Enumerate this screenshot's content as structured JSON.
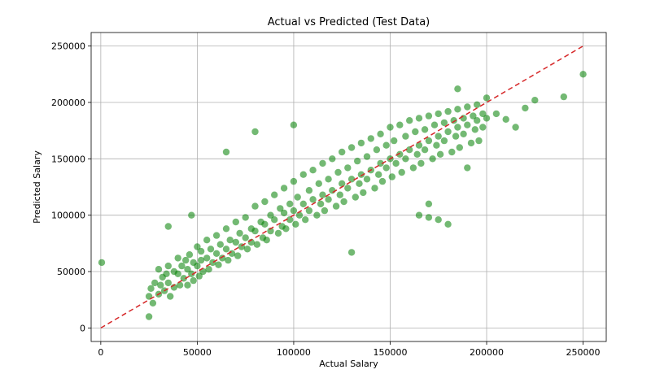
{
  "chart_data": {
    "type": "scatter",
    "title": "Actual vs Predicted (Test Data)",
    "xlabel": "Actual Salary",
    "ylabel": "Predicted Salary",
    "xlim": [
      -5000,
      262000
    ],
    "ylim": [
      -12000,
      262000
    ],
    "xticks": [
      0,
      50000,
      100000,
      150000,
      200000,
      250000
    ],
    "yticks": [
      0,
      50000,
      100000,
      150000,
      200000,
      250000
    ],
    "xtick_labels": [
      "0",
      "50000",
      "100000",
      "150000",
      "200000",
      "250000"
    ],
    "ytick_labels": [
      "0",
      "50000",
      "100000",
      "150000",
      "200000",
      "250000"
    ],
    "grid": true,
    "point_color": "#008000",
    "reference_line": {
      "style": "dashed",
      "color": "#d62728",
      "x": [
        0,
        250000
      ],
      "y": [
        0,
        250000
      ]
    },
    "series": [
      {
        "x": [
          500,
          25000,
          25000,
          26000,
          27000,
          28000,
          30000,
          30000,
          31000,
          32000,
          33000,
          34000,
          35000,
          35000,
          36000,
          38000,
          38000,
          40000,
          40000,
          41000,
          42000,
          43000,
          44000,
          45000,
          45000,
          46000,
          47000,
          48000,
          48000,
          50000,
          50000,
          51000,
          52000,
          52000,
          53000,
          55000,
          55000,
          56000,
          57000,
          58000,
          60000,
          60000,
          61000,
          62000,
          63000,
          65000,
          65000,
          66000,
          67000,
          68000,
          70000,
          70000,
          71000,
          72000,
          73000,
          75000,
          75000,
          76000,
          78000,
          78000,
          80000,
          80000,
          81000,
          83000,
          84000,
          85000,
          85000,
          86000,
          88000,
          88000,
          90000,
          90000,
          92000,
          93000,
          94000,
          95000,
          95000,
          96000,
          98000,
          98000,
          100000,
          100000,
          101000,
          102000,
          103000,
          105000,
          105000,
          106000,
          108000,
          108000,
          110000,
          110000,
          112000,
          113000,
          114000,
          115000,
          115000,
          116000,
          118000,
          118000,
          120000,
          120000,
          122000,
          123000,
          124000,
          125000,
          125000,
          126000,
          128000,
          128000,
          130000,
          130000,
          132000,
          133000,
          134000,
          135000,
          135000,
          136000,
          138000,
          138000,
          140000,
          140000,
          142000,
          143000,
          144000,
          145000,
          145000,
          146000,
          148000,
          148000,
          150000,
          150000,
          151000,
          152000,
          153000,
          155000,
          155000,
          156000,
          158000,
          158000,
          160000,
          160000,
          162000,
          163000,
          164000,
          165000,
          165000,
          166000,
          168000,
          168000,
          170000,
          170000,
          172000,
          173000,
          174000,
          175000,
          175000,
          176000,
          178000,
          178000,
          180000,
          180000,
          182000,
          183000,
          184000,
          185000,
          185000,
          186000,
          188000,
          188000,
          190000,
          190000,
          192000,
          193000,
          194000,
          195000,
          195000,
          196000,
          198000,
          198000,
          200000,
          200000,
          65000,
          80000,
          100000,
          47000,
          35000,
          165000,
          170000,
          175000,
          180000,
          170000,
          130000,
          205000,
          210000,
          215000,
          220000,
          225000,
          240000,
          250000,
          185000,
          190000
        ],
        "y": [
          58000,
          10000,
          28000,
          35000,
          22000,
          40000,
          30000,
          52000,
          38000,
          45000,
          33000,
          48000,
          40000,
          55000,
          28000,
          50000,
          36000,
          48000,
          62000,
          38000,
          55000,
          44000,
          60000,
          52000,
          38000,
          65000,
          48000,
          58000,
          42000,
          55000,
          72000,
          46000,
          60000,
          68000,
          50000,
          62000,
          78000,
          52000,
          70000,
          58000,
          66000,
          82000,
          56000,
          74000,
          62000,
          70000,
          88000,
          60000,
          78000,
          66000,
          76000,
          94000,
          64000,
          84000,
          72000,
          80000,
          98000,
          70000,
          88000,
          76000,
          86000,
          108000,
          74000,
          94000,
          80000,
          92000,
          112000,
          78000,
          100000,
          86000,
          96000,
          118000,
          84000,
          106000,
          90000,
          102000,
          124000,
          88000,
          110000,
          96000,
          104000,
          130000,
          92000,
          116000,
          100000,
          110000,
          136000,
          96000,
          122000,
          104000,
          114000,
          140000,
          100000,
          128000,
          110000,
          118000,
          146000,
          104000,
          132000,
          114000,
          122000,
          150000,
          108000,
          138000,
          118000,
          128000,
          156000,
          112000,
          142000,
          124000,
          132000,
          160000,
          116000,
          148000,
          128000,
          136000,
          164000,
          120000,
          152000,
          132000,
          140000,
          168000,
          124000,
          158000,
          136000,
          146000,
          172000,
          130000,
          162000,
          142000,
          150000,
          178000,
          134000,
          166000,
          146000,
          154000,
          180000,
          138000,
          170000,
          150000,
          158000,
          184000,
          142000,
          174000,
          154000,
          162000,
          186000,
          146000,
          176000,
          158000,
          166000,
          188000,
          150000,
          180000,
          162000,
          170000,
          190000,
          154000,
          182000,
          166000,
          174000,
          192000,
          156000,
          184000,
          170000,
          178000,
          194000,
          160000,
          186000,
          172000,
          180000,
          196000,
          164000,
          188000,
          176000,
          184000,
          198000,
          166000,
          190000,
          178000,
          186000,
          204000,
          156000,
          174000,
          180000,
          100000,
          90000,
          100000,
          98000,
          96000,
          92000,
          110000,
          67000,
          190000,
          185000,
          178000,
          195000,
          202000,
          205000,
          225000,
          212000,
          142000
        ]
      }
    ]
  }
}
